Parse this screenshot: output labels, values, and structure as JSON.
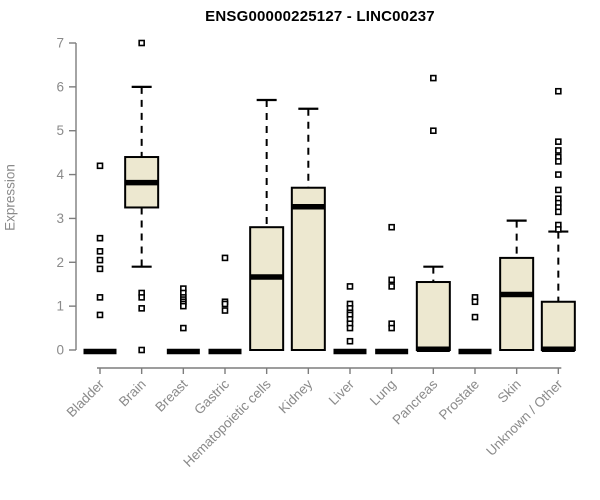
{
  "title": "ENSG00000225127 - LINC00237",
  "chart_data": {
    "type": "boxplot",
    "title": "ENSG00000225127 - LINC00237",
    "xlabel": "",
    "ylabel": "Expression",
    "ylim": [
      0,
      7
    ],
    "yticks": [
      0,
      1,
      2,
      3,
      4,
      5,
      6,
      7
    ],
    "grid": false,
    "legend": false,
    "categories": [
      "Bladder",
      "Brain",
      "Breast",
      "Gastric",
      "Hematopoietic cells",
      "Kidney",
      "Liver",
      "Lung",
      "Pancreas",
      "Prostate",
      "Skin",
      "Unknown / Other"
    ],
    "series": [
      {
        "name": "Bladder",
        "q1": 0,
        "median": 0,
        "q3": 0,
        "whisker_low": 0,
        "whisker_high": 0,
        "outliers": [
          4.2,
          2.55,
          2.25,
          2.05,
          1.85,
          1.2,
          0.8
        ]
      },
      {
        "name": "Brain",
        "q1": 3.25,
        "median": 3.85,
        "q3": 4.4,
        "whisker_low": 1.9,
        "whisker_high": 6.0,
        "outliers": [
          7.0,
          1.3,
          1.2,
          0.95,
          0.0
        ]
      },
      {
        "name": "Breast",
        "q1": 0,
        "median": 0,
        "q3": 0,
        "whisker_low": 0,
        "whisker_high": 0,
        "outliers": [
          1.4,
          1.3,
          1.2,
          1.15,
          1.1,
          1.05,
          1.0,
          0.5
        ]
      },
      {
        "name": "Gastric",
        "q1": 0,
        "median": 0,
        "q3": 0,
        "whisker_low": 0,
        "whisker_high": 0,
        "outliers": [
          2.1,
          1.1,
          1.05,
          0.9
        ]
      },
      {
        "name": "Hematopoietic cells",
        "q1": 0,
        "median": 1.7,
        "q3": 2.8,
        "whisker_low": 0,
        "whisker_high": 5.7,
        "outliers": []
      },
      {
        "name": "Kidney",
        "q1": 0,
        "median": 3.3,
        "q3": 3.7,
        "whisker_low": 0,
        "whisker_high": 5.5,
        "outliers": []
      },
      {
        "name": "Liver",
        "q1": 0,
        "median": 0,
        "q3": 0,
        "whisker_low": 0,
        "whisker_high": 0,
        "outliers": [
          1.45,
          1.05,
          0.95,
          0.85,
          0.8,
          0.7,
          0.6,
          0.5,
          0.2
        ]
      },
      {
        "name": "Lung",
        "q1": 0,
        "median": 0,
        "q3": 0,
        "whisker_low": 0,
        "whisker_high": 0,
        "outliers": [
          2.8,
          1.6,
          1.45,
          0.6,
          0.5
        ]
      },
      {
        "name": "Pancreas",
        "q1": 0,
        "median": 0.05,
        "q3": 1.55,
        "whisker_low": 0,
        "whisker_high": 1.9,
        "outliers": [
          6.2,
          5.0
        ]
      },
      {
        "name": "Prostate",
        "q1": 0,
        "median": 0,
        "q3": 0,
        "whisker_low": 0,
        "whisker_high": 0,
        "outliers": [
          1.2,
          1.1,
          0.75
        ]
      },
      {
        "name": "Skin",
        "q1": 0,
        "median": 1.3,
        "q3": 2.1,
        "whisker_low": 0,
        "whisker_high": 2.95,
        "outliers": []
      },
      {
        "name": "Unknown / Other",
        "q1": 0,
        "median": 0.05,
        "q3": 1.1,
        "whisker_low": 0,
        "whisker_high": 2.7,
        "outliers": [
          5.9,
          4.75,
          4.55,
          4.4,
          4.3,
          4.0,
          3.65,
          3.45,
          3.35,
          3.25,
          3.15,
          2.85,
          2.75
        ]
      }
    ],
    "colors": {
      "box_fill": "#EDE8D0",
      "box_border": "#000000",
      "median": "#000000",
      "whisker": "#000000",
      "outlier_fill": "#ffffff",
      "outlier_border": "#000000",
      "axis": "#7d7d7d",
      "tick_label": "#8a8a8a",
      "title": "#000000",
      "background": "#ffffff"
    }
  }
}
